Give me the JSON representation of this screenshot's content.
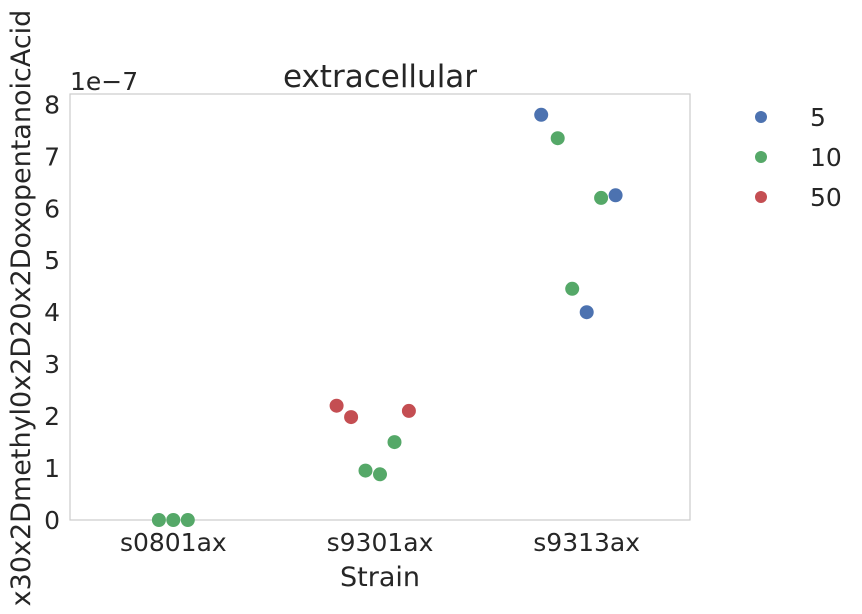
{
  "chart_data": {
    "type": "scatter",
    "title": "extracellular",
    "xlabel": "Strain",
    "ylabel": "x30x2Dmethyl0x2D20x2DoxopentanoicAcid",
    "y_offset_label": "1e−7",
    "categories": [
      "s0801ax",
      "s9301ax",
      "s9313ax"
    ],
    "yticks": [
      "0",
      "1",
      "2",
      "3",
      "4",
      "5",
      "6",
      "7",
      "8"
    ],
    "ylim": [
      0,
      8.2
    ],
    "grid": false,
    "legend_placement": "outside-top-right",
    "series": [
      {
        "name": "5",
        "color": "#4c72b0",
        "points": [
          {
            "category": "s9313ax",
            "jitter": -0.22,
            "y": 7.8
          },
          {
            "category": "s9313ax",
            "jitter": 0.14,
            "y": 6.25
          },
          {
            "category": "s9313ax",
            "jitter": 0.0,
            "y": 4.0
          }
        ]
      },
      {
        "name": "10",
        "color": "#55a868",
        "points": [
          {
            "category": "s0801ax",
            "jitter": -0.07,
            "y": 0.0
          },
          {
            "category": "s0801ax",
            "jitter": 0.0,
            "y": 0.0
          },
          {
            "category": "s0801ax",
            "jitter": 0.07,
            "y": 0.0
          },
          {
            "category": "s9301ax",
            "jitter": -0.07,
            "y": 0.95
          },
          {
            "category": "s9301ax",
            "jitter": 0.0,
            "y": 0.88
          },
          {
            "category": "s9301ax",
            "jitter": 0.07,
            "y": 1.5
          },
          {
            "category": "s9313ax",
            "jitter": -0.14,
            "y": 7.35
          },
          {
            "category": "s9313ax",
            "jitter": 0.07,
            "y": 6.2
          },
          {
            "category": "s9313ax",
            "jitter": -0.07,
            "y": 4.45
          }
        ]
      },
      {
        "name": "50",
        "color": "#c44e52",
        "points": [
          {
            "category": "s9301ax",
            "jitter": -0.21,
            "y": 2.2
          },
          {
            "category": "s9301ax",
            "jitter": -0.14,
            "y": 1.98
          },
          {
            "category": "s9301ax",
            "jitter": 0.14,
            "y": 2.1
          }
        ]
      }
    ]
  }
}
